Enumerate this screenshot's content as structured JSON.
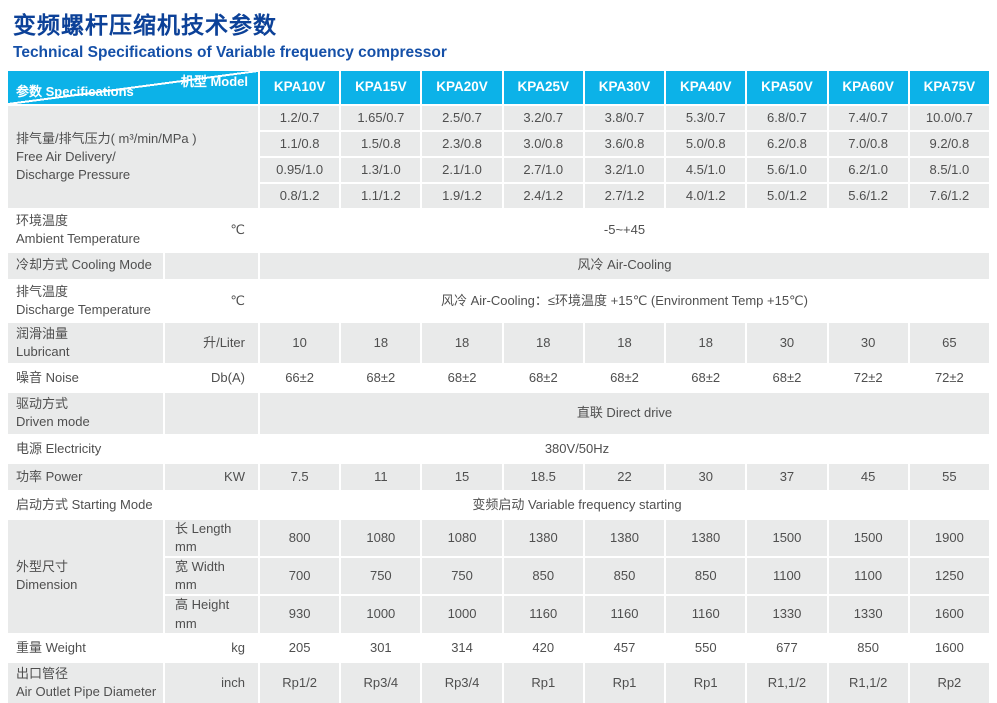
{
  "page": {
    "title_zh": "变频螺杆压缩机技术参数",
    "title_en": "Technical Specifications of Variable frequency compressor"
  },
  "colors": {
    "accent": "#0cb2e8",
    "title_blue": "#0c4198",
    "subtitle_blue": "#1550a8",
    "row_shade": "#e9eaea",
    "text": "#4f4f4f"
  },
  "table": {
    "corner_top_right": "机型 Model",
    "corner_bottom_left": "参数 Specifications",
    "models": [
      "KPA10V",
      "KPA15V",
      "KPA20V",
      "KPA25V",
      "KPA30V",
      "KPA40V",
      "KPA50V",
      "KPA60V",
      "KPA75V"
    ],
    "blocks": [
      {
        "name": "free-air-delivery",
        "shade": "gray",
        "label": "排气量/排气压力( m³/min/MPa )\nFree Air Delivery/\nDischarge Pressure",
        "label_span_unit": true,
        "rows": [
          [
            "1.2/0.7",
            "1.65/0.7",
            "2.5/0.7",
            "3.2/0.7",
            "3.8/0.7",
            "5.3/0.7",
            "6.8/0.7",
            "7.4/0.7",
            "10.0/0.7"
          ],
          [
            "1.1/0.8",
            "1.5/0.8",
            "2.3/0.8",
            "3.0/0.8",
            "3.6/0.8",
            "5.0/0.8",
            "6.2/0.8",
            "7.0/0.8",
            "9.2/0.8"
          ],
          [
            "0.95/1.0",
            "1.3/1.0",
            "2.1/1.0",
            "2.7/1.0",
            "3.2/1.0",
            "4.5/1.0",
            "5.6/1.0",
            "6.2/1.0",
            "8.5/1.0"
          ],
          [
            "0.8/1.2",
            "1.1/1.2",
            "1.9/1.2",
            "2.4/1.2",
            "2.7/1.2",
            "4.0/1.2",
            "5.0/1.2",
            "5.6/1.2",
            "7.6/1.2"
          ]
        ]
      },
      {
        "name": "ambient-temperature",
        "shade": "white",
        "label": "环境温度\nAmbient Temperature",
        "unit": "℃",
        "span_value": "-5~+45"
      },
      {
        "name": "cooling-mode",
        "shade": "gray",
        "label": "冷却方式 Cooling Mode",
        "unit": "",
        "span_value": "风冷 Air-Cooling"
      },
      {
        "name": "discharge-temperature",
        "shade": "white",
        "label": "排气温度\nDischarge Temperature",
        "unit": "℃",
        "span_value": "风冷 Air-Cooling：≤环境温度 +15℃ (Environment Temp +15℃)"
      },
      {
        "name": "lubricant",
        "shade": "gray",
        "label": "润滑油量\nLubricant",
        "unit": "升/Liter",
        "values": [
          "10",
          "18",
          "18",
          "18",
          "18",
          "18",
          "30",
          "30",
          "65"
        ]
      },
      {
        "name": "noise",
        "shade": "white",
        "label": "噪音 Noise",
        "unit": "Db(A)",
        "values": [
          "66±2",
          "68±2",
          "68±2",
          "68±2",
          "68±2",
          "68±2",
          "68±2",
          "72±2",
          "72±2"
        ]
      },
      {
        "name": "driven-mode",
        "shade": "gray",
        "label": "驱动方式\nDriven mode",
        "unit": "",
        "span_value": "直联 Direct drive"
      },
      {
        "name": "electricity",
        "shade": "white",
        "label": "电源 Electricity",
        "unit": "",
        "merge_unit": true,
        "span_value": "380V/50Hz"
      },
      {
        "name": "power",
        "shade": "gray",
        "label": "功率 Power",
        "unit": "KW",
        "values": [
          "7.5",
          "11",
          "15",
          "18.5",
          "22",
          "30",
          "37",
          "45",
          "55"
        ]
      },
      {
        "name": "starting-mode",
        "shade": "white",
        "label": "启动方式 Starting Mode",
        "unit": "",
        "merge_unit": true,
        "span_value": "变频启动 Variable frequency starting"
      },
      {
        "name": "dimension",
        "shade": "gray",
        "label": "外型尺寸\nDimension",
        "sub_rows": [
          {
            "unit": "长 Length mm",
            "values": [
              "800",
              "1080",
              "1080",
              "1380",
              "1380",
              "1380",
              "1500",
              "1500",
              "1900"
            ]
          },
          {
            "unit": "宽  Width mm",
            "values": [
              "700",
              "750",
              "750",
              "850",
              "850",
              "850",
              "1100",
              "1100",
              "1250"
            ]
          },
          {
            "unit": "高  Height mm",
            "values": [
              "930",
              "1000",
              "1000",
              "1160",
              "1160",
              "1160",
              "1330",
              "1330",
              "1600"
            ]
          }
        ]
      },
      {
        "name": "weight",
        "shade": "white",
        "label": "重量 Weight",
        "unit": "kg",
        "values": [
          "205",
          "301",
          "314",
          "420",
          "457",
          "550",
          "677",
          "850",
          "1600"
        ]
      },
      {
        "name": "outlet-pipe",
        "shade": "gray",
        "label": "出口管径\nAir Outlet Pipe Diameter",
        "unit": "inch",
        "values": [
          "Rp1/2",
          "Rp3/4",
          "Rp3/4",
          "Rp1",
          "Rp1",
          "Rp1",
          "R1,1/2",
          "R1,1/2",
          "Rp2"
        ]
      }
    ]
  }
}
